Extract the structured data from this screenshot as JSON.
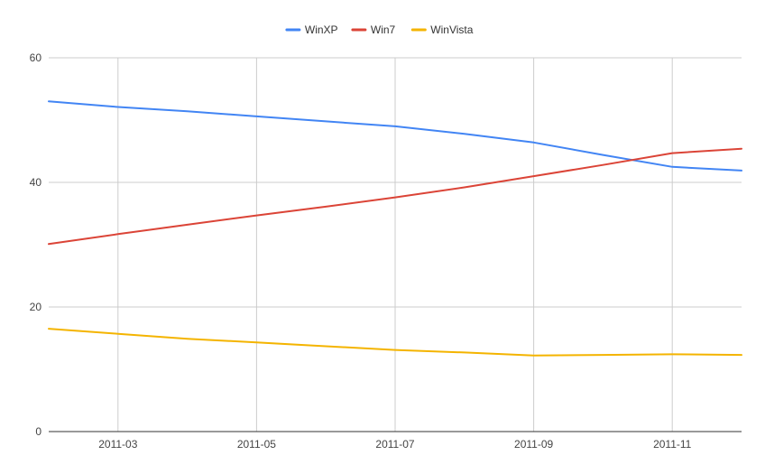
{
  "chart_data": {
    "type": "line",
    "x": [
      "2011-02",
      "2011-03",
      "2011-04",
      "2011-05",
      "2011-06",
      "2011-07",
      "2011-08",
      "2011-09",
      "2011-10",
      "2011-11",
      "2011-12"
    ],
    "x_tick_labels": [
      "2011-03",
      "2011-05",
      "2011-07",
      "2011-09",
      "2011-11"
    ],
    "y_ticks": [
      0,
      20,
      40,
      60
    ],
    "ylim": [
      0,
      60
    ],
    "grid": true,
    "legend_position": "top-center",
    "series": [
      {
        "name": "WinXP",
        "color": "#4285f4",
        "values": [
          53.0,
          52.1,
          51.4,
          50.6,
          49.8,
          49.0,
          47.8,
          46.4,
          44.4,
          42.5,
          41.9
        ]
      },
      {
        "name": "Win7",
        "color": "#db4437",
        "values": [
          30.1,
          31.7,
          33.2,
          34.7,
          36.1,
          37.6,
          39.2,
          41.0,
          42.8,
          44.7,
          45.4
        ]
      },
      {
        "name": "WinVista",
        "color": "#f4b400",
        "values": [
          16.5,
          15.7,
          14.9,
          14.3,
          13.7,
          13.1,
          12.7,
          12.2,
          12.3,
          12.4,
          12.3
        ]
      }
    ]
  }
}
